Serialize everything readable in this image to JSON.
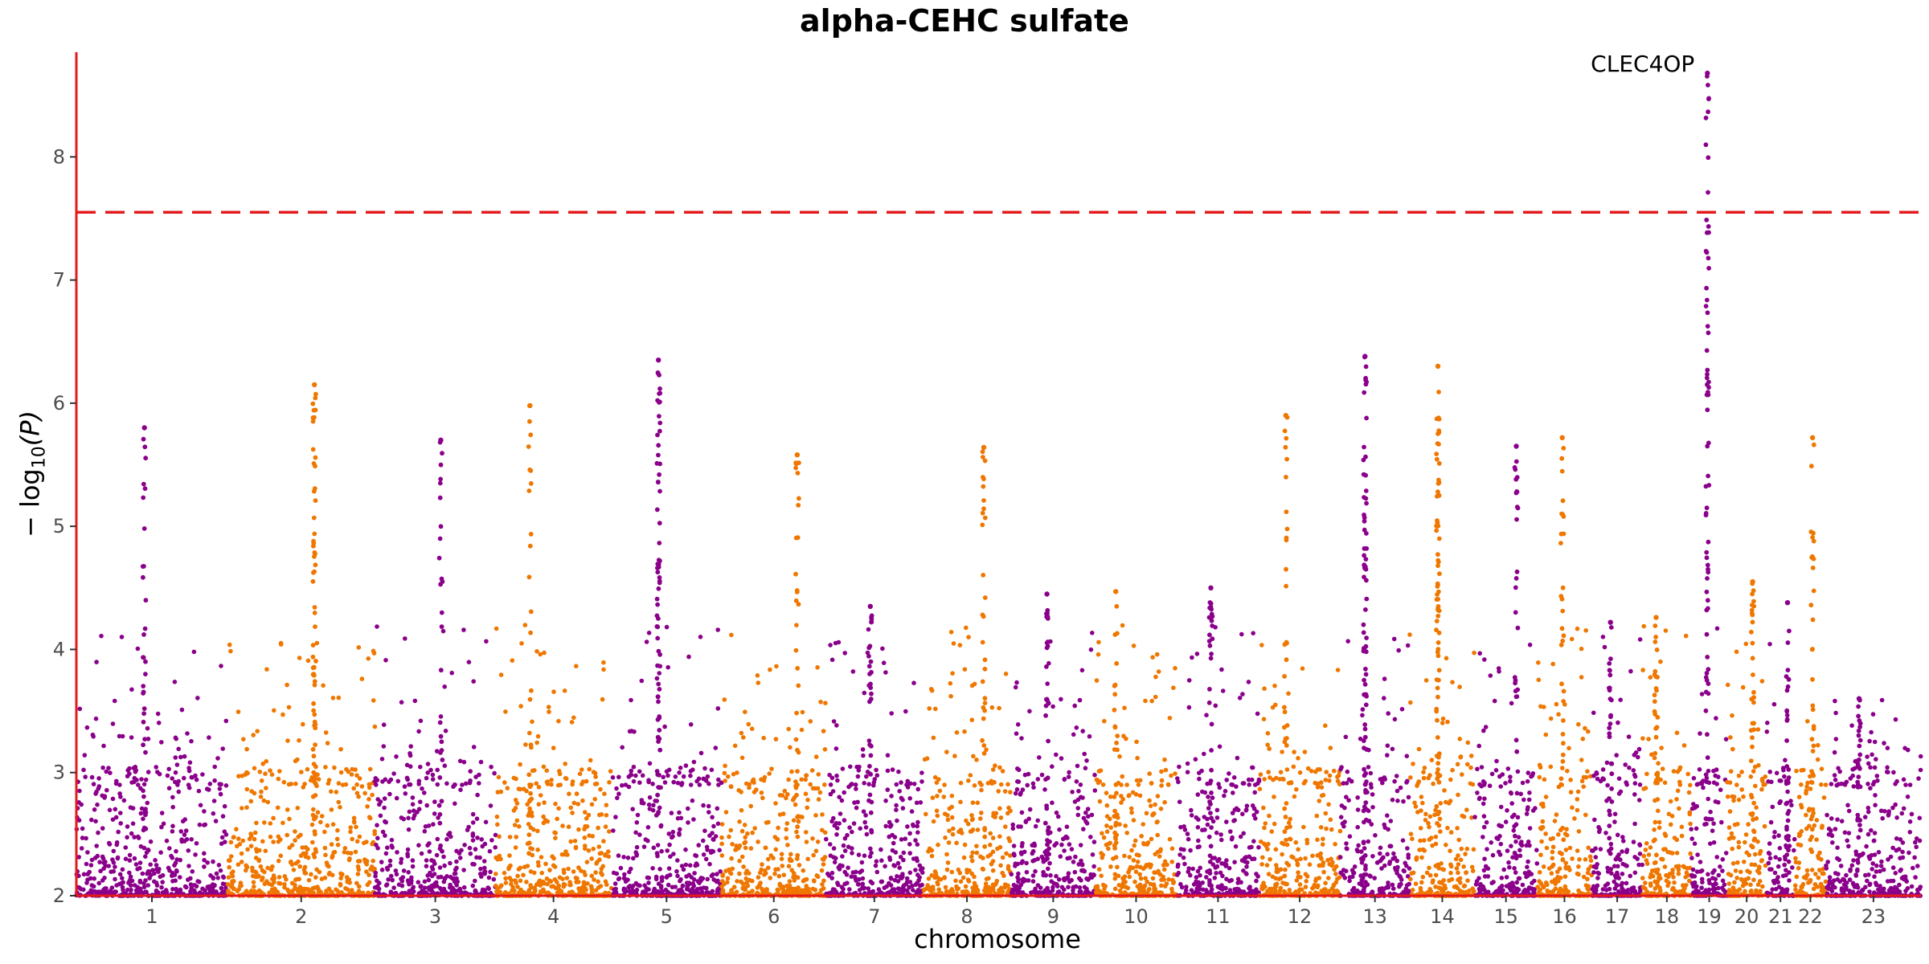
{
  "chart_data": {
    "type": "scatter",
    "title": "alpha-CEHC sulfate",
    "xlabel": "chromosome",
    "ylabel_prefix": "−",
    "ylabel_main": "log",
    "ylabel_sub": "10",
    "ylabel_suffix": "(P)",
    "ylim": [
      2,
      8.85
    ],
    "y_ticks": [
      2,
      3,
      4,
      5,
      6,
      7,
      8
    ],
    "threshold": 7.55,
    "threshold_color": "#e31a1c",
    "axis_color": "#e31a1c",
    "colors": {
      "odd": "#8b008b",
      "even": "#ef7700"
    },
    "annotation": {
      "label": "CLEC4OP",
      "chromosome": "19",
      "y": 8.68
    },
    "chromosomes": [
      {
        "label": "1",
        "length": 248,
        "max": 5.8
      },
      {
        "label": "2",
        "length": 242,
        "max": 6.15
      },
      {
        "label": "3",
        "length": 198,
        "max": 5.7
      },
      {
        "label": "4",
        "length": 190,
        "max": 5.98
      },
      {
        "label": "5",
        "length": 181,
        "max": 6.35
      },
      {
        "label": "6",
        "length": 171,
        "max": 5.58
      },
      {
        "label": "7",
        "length": 159,
        "max": 4.35
      },
      {
        "label": "8",
        "length": 145,
        "max": 5.64
      },
      {
        "label": "9",
        "length": 138,
        "max": 4.45
      },
      {
        "label": "10",
        "length": 134,
        "max": 4.47
      },
      {
        "label": "11",
        "length": 135,
        "max": 4.5
      },
      {
        "label": "12",
        "length": 133,
        "max": 5.9
      },
      {
        "label": "13",
        "length": 114,
        "max": 6.38
      },
      {
        "label": "14",
        "length": 107,
        "max": 6.3
      },
      {
        "label": "15",
        "length": 102,
        "max": 5.65
      },
      {
        "label": "16",
        "length": 90,
        "max": 5.72
      },
      {
        "label": "17",
        "length": 83,
        "max": 4.22
      },
      {
        "label": "18",
        "length": 80,
        "max": 4.26
      },
      {
        "label": "19",
        "length": 59,
        "max": 8.68
      },
      {
        "label": "20",
        "length": 64,
        "max": 4.55
      },
      {
        "label": "21",
        "length": 47,
        "max": 4.38
      },
      {
        "label": "22",
        "length": 51,
        "max": 5.72
      },
      {
        "label": "23",
        "length": 156,
        "max": 3.6
      }
    ]
  }
}
